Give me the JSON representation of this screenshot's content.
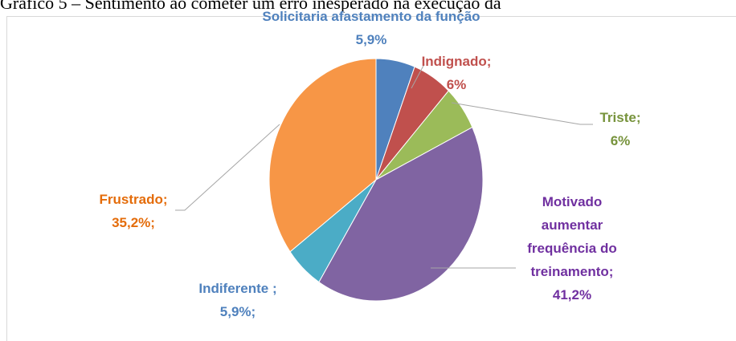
{
  "chart_data": {
    "type": "pie",
    "title": "Gráfico 5 – Sentimento ao cometer um erro inesperado na execução da",
    "categories": [
      "Solicitaria afastamento da função",
      "Indignado;",
      "Triste;",
      "Motivado aumentar frequência do treinamento;",
      "Indiferente ;",
      "Frustrado;"
    ],
    "values": [
      5.9,
      6,
      6,
      41.2,
      5.9,
      35.2
    ],
    "value_labels": [
      "5,9%",
      "6%",
      "6%",
      "41,2%",
      "5,9%;",
      "35,2%;"
    ],
    "colors": [
      "#4f81bd",
      "#c0504d",
      "#9bbb59",
      "#8064a2",
      "#4bacc6",
      "#f79646"
    ],
    "label_colors": [
      "#4f81bd",
      "#c0504d",
      "#77933c",
      "#7030a0",
      "#4f81bd",
      "#e46c0a"
    ]
  }
}
